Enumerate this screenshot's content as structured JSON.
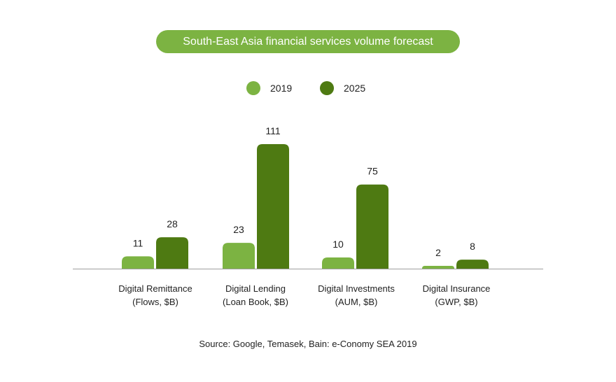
{
  "colors": {
    "title_bg": "#7cb342",
    "series_2019": "#7cb342",
    "series_2025": "#4e7a12",
    "axis": "#9e9e9e"
  },
  "chart_data": {
    "type": "bar",
    "title": "South-East Asia financial services volume forecast",
    "categories": [
      [
        "Digital Remittance",
        "(Flows, $B)"
      ],
      [
        "Digital Lending",
        "(Loan Book, $B)"
      ],
      [
        "Digital Investments",
        "(AUM, $B)"
      ],
      [
        "Digital Insurance",
        "(GWP, $B)"
      ]
    ],
    "series": [
      {
        "name": "2019",
        "values": [
          11,
          23,
          10,
          2
        ]
      },
      {
        "name": "2025",
        "values": [
          28,
          111,
          75,
          8
        ]
      }
    ],
    "ylim": [
      0,
      111
    ],
    "grid": false,
    "legend_position": "top-center",
    "data_labels": true
  },
  "source": "Source: Google, Temasek, Bain: e-Conomy SEA 2019"
}
